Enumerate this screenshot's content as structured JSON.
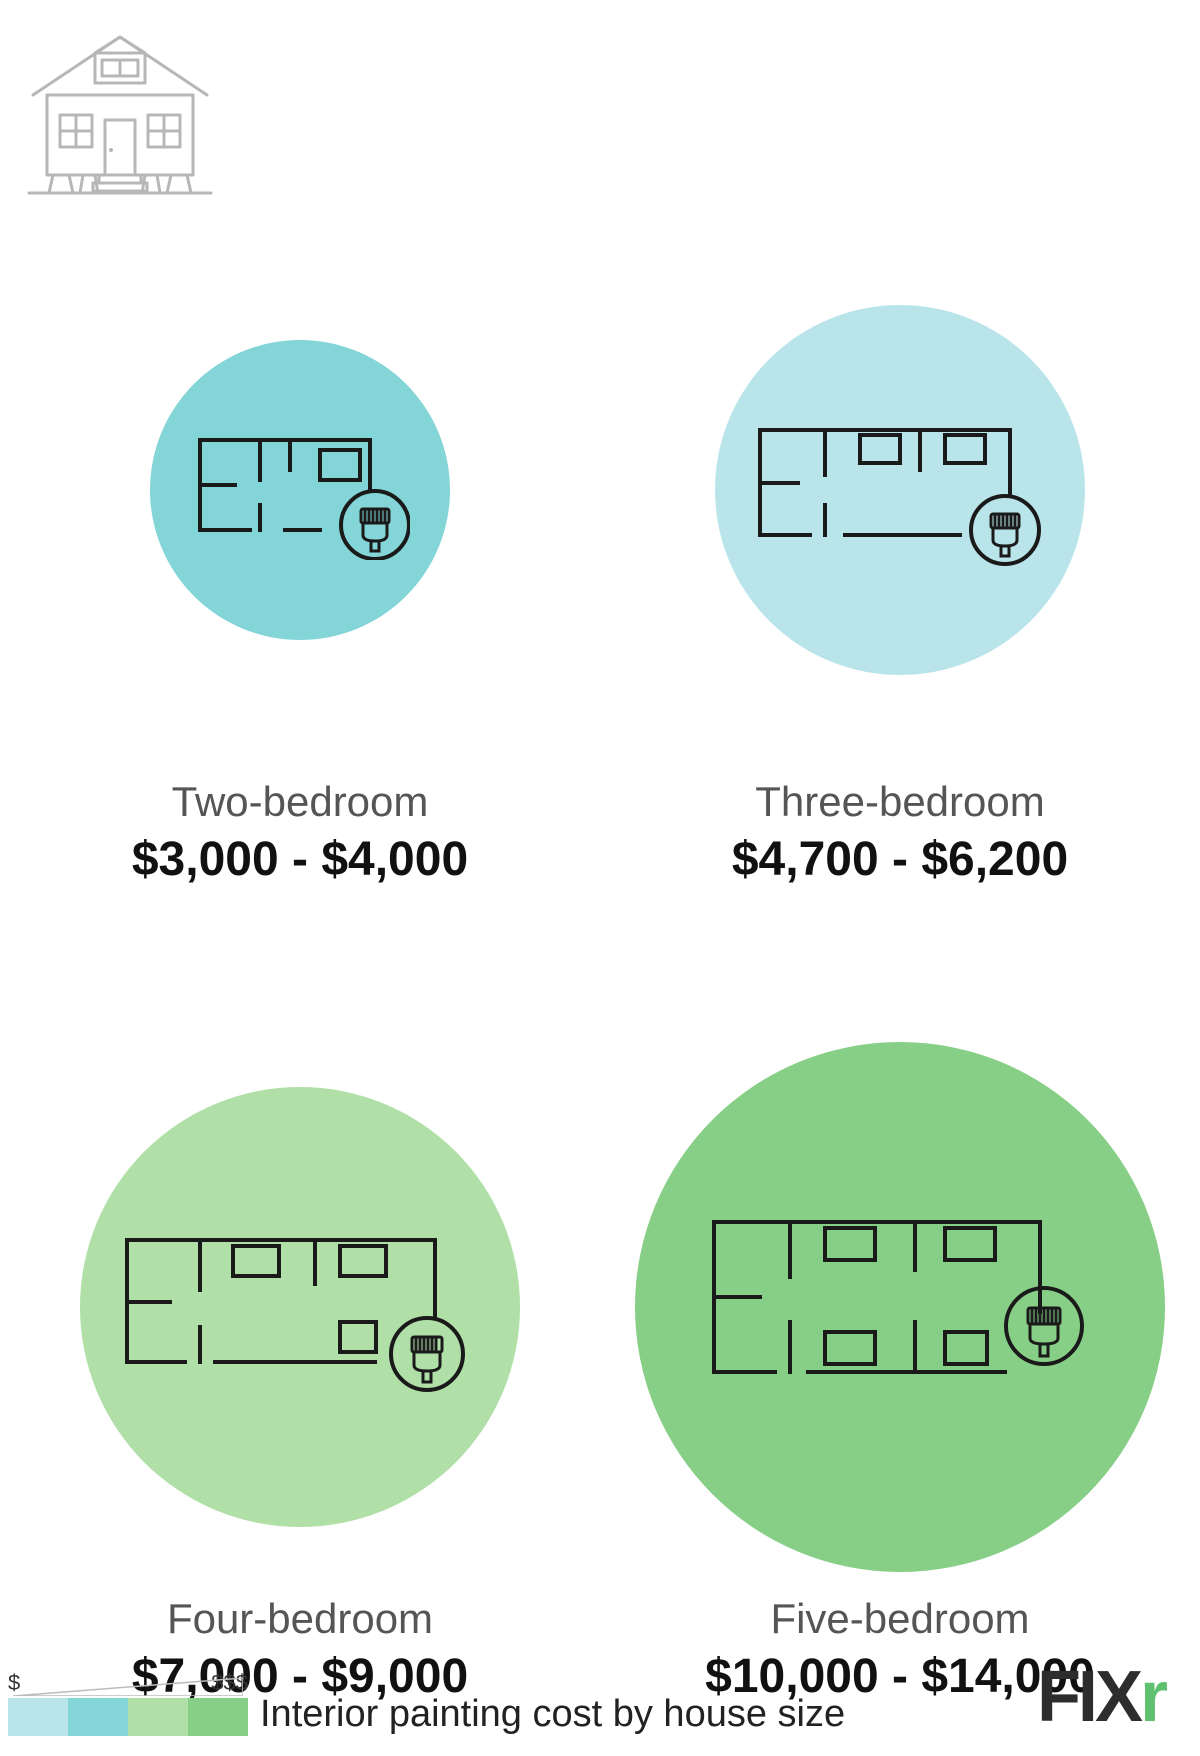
{
  "items": [
    {
      "label": "Two-bedroom",
      "price": "$3,000 - $4,000",
      "circle_color": "#84d5d8",
      "diameter": 300
    },
    {
      "label": "Three-bedroom",
      "price": "$4,700 - $6,200",
      "circle_color": "#b9e5ea",
      "diameter": 370
    },
    {
      "label": "Four-bedroom",
      "price": "$7,000 - $9,000",
      "circle_color": "#b0e0a8",
      "diameter": 440
    },
    {
      "label": "Five-bedroom",
      "price": "$10,000 - $14,000",
      "circle_color": "#87cf86",
      "diameter": 530
    }
  ],
  "legend": {
    "low_label": "$",
    "high_label": "$$$",
    "swatches": [
      "#b9e5ea",
      "#84d5d8",
      "#b0e0a8",
      "#87cf86"
    ],
    "title": "Interior painting cost by house size"
  },
  "brand": {
    "text": "FIX",
    "accent": "r"
  },
  "house_icon_color": "#b7b7b7",
  "floorplan_stroke": "#1a1a1a"
}
